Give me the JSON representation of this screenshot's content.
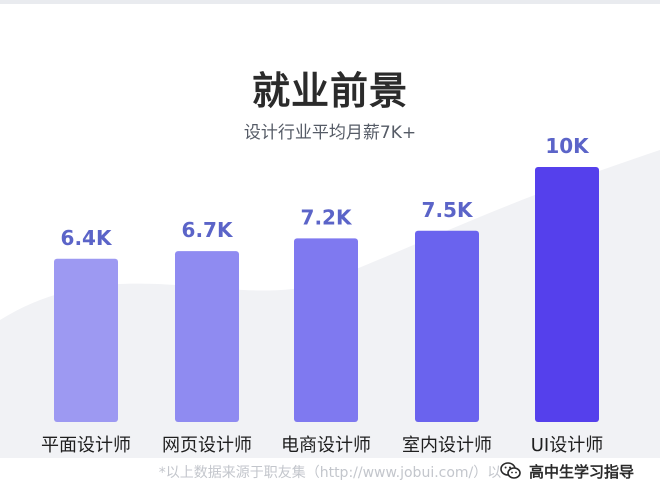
{
  "chart_data": {
    "type": "bar",
    "title": "就业前景",
    "subtitle": "设计行业平均月薪7K+",
    "categories": [
      "平面设计师",
      "网页设计师",
      "电商设计师",
      "室内设计师",
      "UI设计师"
    ],
    "values": [
      6.4,
      6.7,
      7.2,
      7.5,
      10
    ],
    "value_labels": [
      "6.4K",
      "6.7K",
      "7.2K",
      "7.5K",
      "10K"
    ],
    "bar_colors": [
      "#9d99f2",
      "#8f8bf1",
      "#7f79f0",
      "#6a63ee",
      "#5540ec"
    ],
    "value_label_color": "#5b64c8",
    "grid": false,
    "legend": "none"
  },
  "footer": {
    "text": "*以上数据来源于职友集（http://www.jobui.com/）以",
    "watermark_label": "高中生学习指导",
    "watermark_icon": "wechat-icon"
  }
}
